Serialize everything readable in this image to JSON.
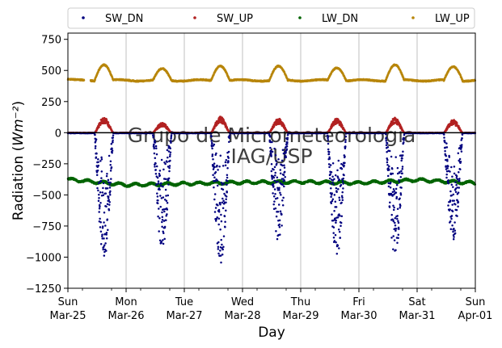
{
  "chart_data": {
    "type": "scatter",
    "title": "",
    "xlabel": "Day",
    "ylabel": "Radiation (Wm⁻²)",
    "ylim": [
      -1250,
      800
    ],
    "yticks": [
      -1250,
      -1000,
      -750,
      -500,
      -250,
      0,
      250,
      500,
      750
    ],
    "yticklabels": [
      "−1250",
      "−1000",
      "−750",
      "−500",
      "−250",
      "0",
      "250",
      "500",
      "750"
    ],
    "xlim": [
      "2018-03-25",
      "2018-04-01"
    ],
    "xticks": [
      {
        "day": "Sun",
        "date": "Mar-25"
      },
      {
        "day": "Mon",
        "date": "Mar-26"
      },
      {
        "day": "Tue",
        "date": "Mar-27"
      },
      {
        "day": "Wed",
        "date": "Mar-28"
      },
      {
        "day": "Thu",
        "date": "Mar-29"
      },
      {
        "day": "Fri",
        "date": "Mar-30"
      },
      {
        "day": "Sat",
        "date": "Mar-31"
      },
      {
        "day": "Sun",
        "date": "Apr-01"
      }
    ],
    "grid": "vertical",
    "legend_position": "top",
    "watermark": [
      "Grupo de Micrometeorologia",
      "IAG/USP"
    ],
    "series": [
      {
        "name": "SW_DN",
        "color": "#00007f",
        "description": "Downward shortwave, plotted negative",
        "daily_min": [
          -1020,
          -940,
          -1075,
          -880,
          -1010,
          -1010,
          -890
        ]
      },
      {
        "name": "SW_UP",
        "color": "#b22222",
        "description": "Upward shortwave",
        "daily_max": [
          125,
          80,
          130,
          115,
          115,
          120,
          105
        ]
      },
      {
        "name": "LW_DN",
        "color": "#006400",
        "description": "Downward longwave, plotted negative",
        "daily_mean": [
          -375,
          -420,
          -410,
          -400,
          -395,
          -405,
          -380,
          -405
        ]
      },
      {
        "name": "LW_UP",
        "color": "#b8860b",
        "description": "Upward longwave",
        "daily_max": [
          545,
          515,
          535,
          535,
          520,
          545,
          530
        ],
        "night_value": 420
      }
    ]
  }
}
